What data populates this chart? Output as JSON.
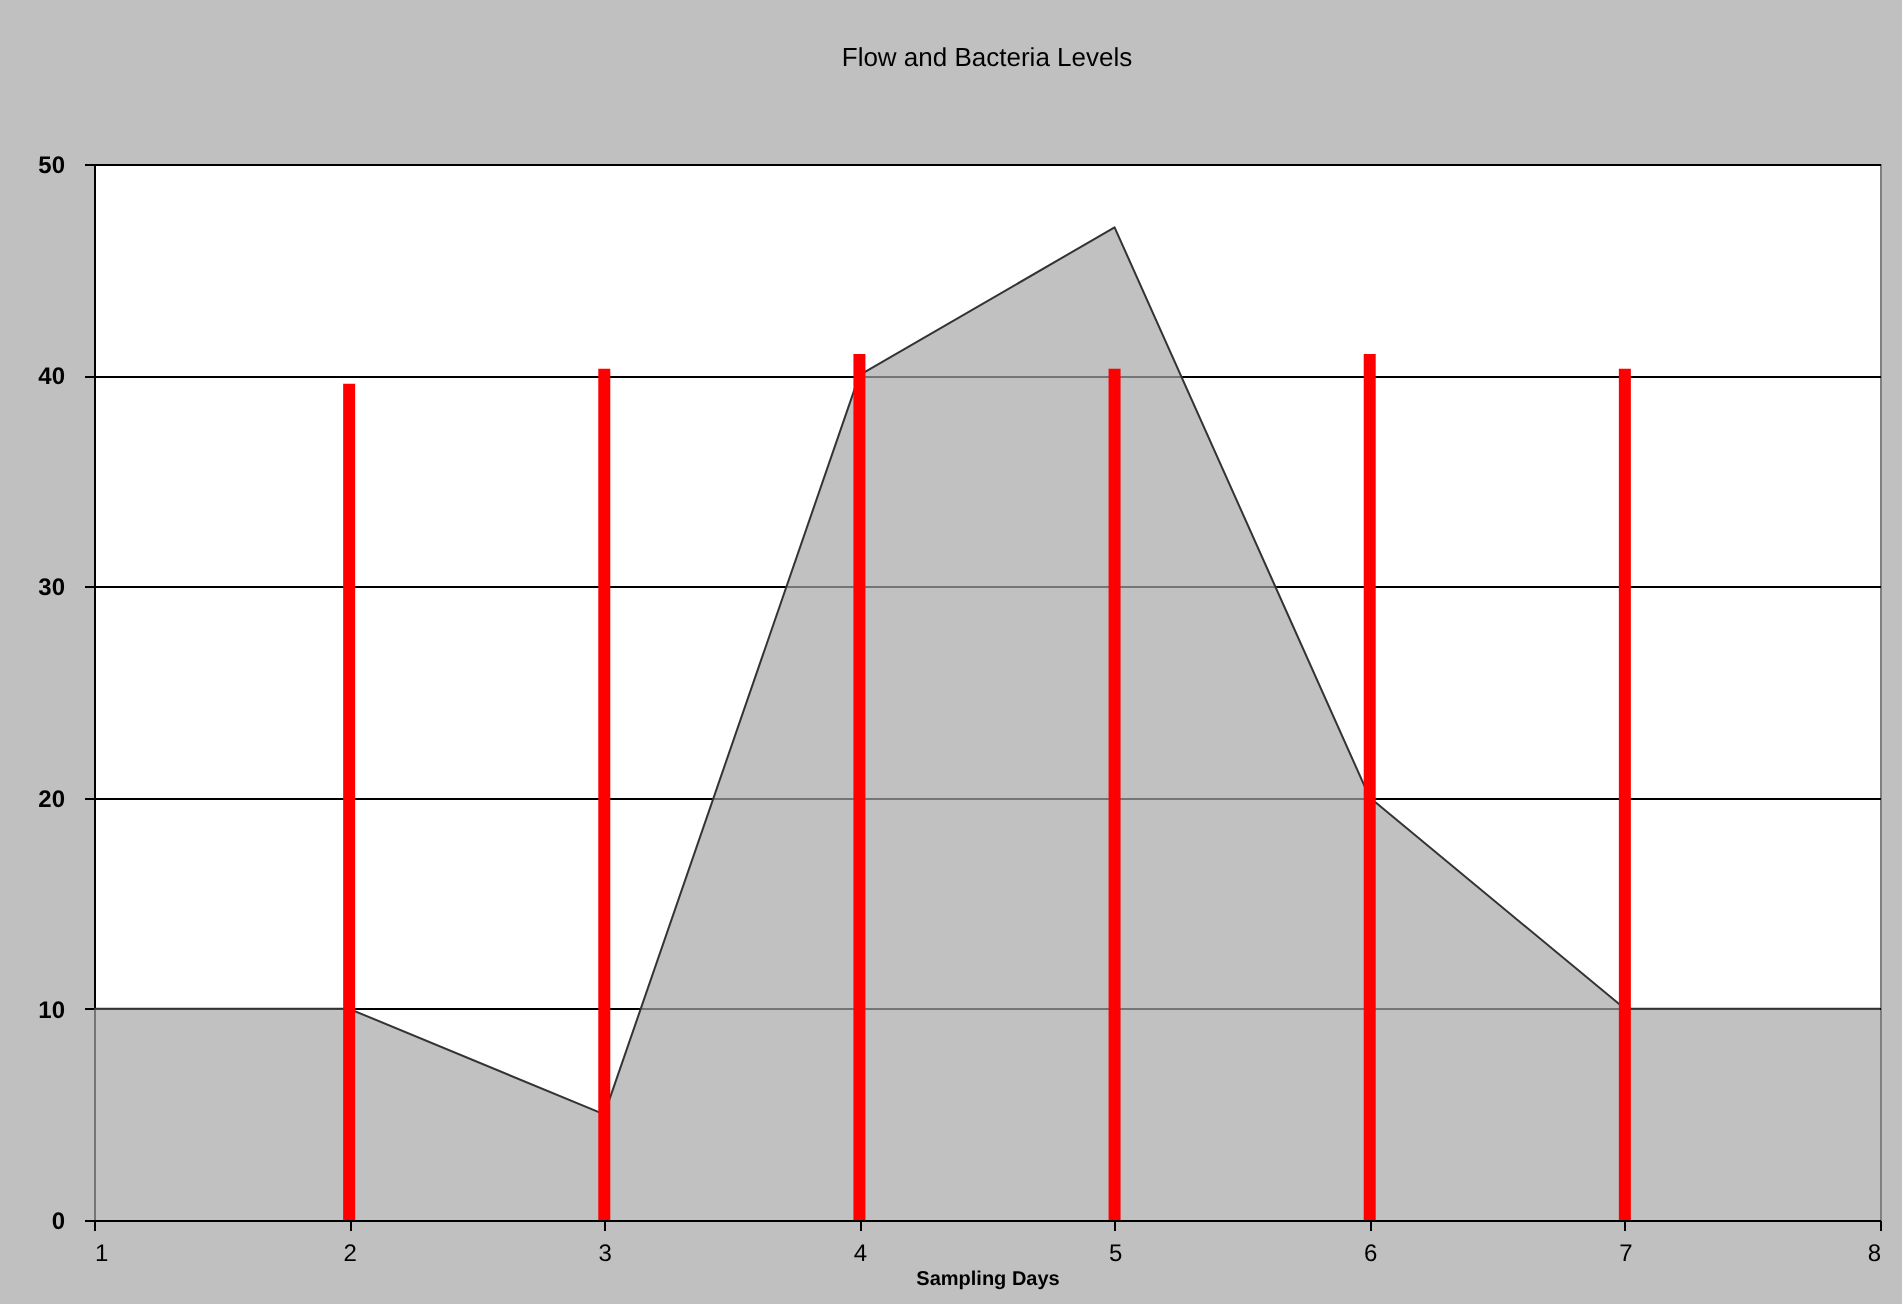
{
  "chart_data": {
    "type": "area",
    "title": "Flow and Bacteria Levels",
    "xlabel": "Sampling Days",
    "xlim": [
      1,
      8
    ],
    "xticks": [
      1,
      2,
      3,
      4,
      5,
      6,
      7,
      8
    ],
    "ylim": [
      0,
      50
    ],
    "yticks": [
      0,
      10,
      20,
      30,
      40,
      50
    ],
    "grid": "y",
    "series": [
      {
        "color": "#a6a6a6",
        "x": [
          1,
          2,
          3,
          4,
          5,
          6,
          7,
          8
        ],
        "values": [
          10,
          10,
          5,
          40,
          47,
          20,
          10,
          10
        ]
      },
      {
        "type": "bar",
        "color": "#ff0000",
        "x": [
          2,
          3,
          4,
          5,
          6,
          7
        ],
        "values": [
          39.6,
          40.3,
          41,
          40.3,
          41,
          40.3
        ]
      }
    ]
  }
}
